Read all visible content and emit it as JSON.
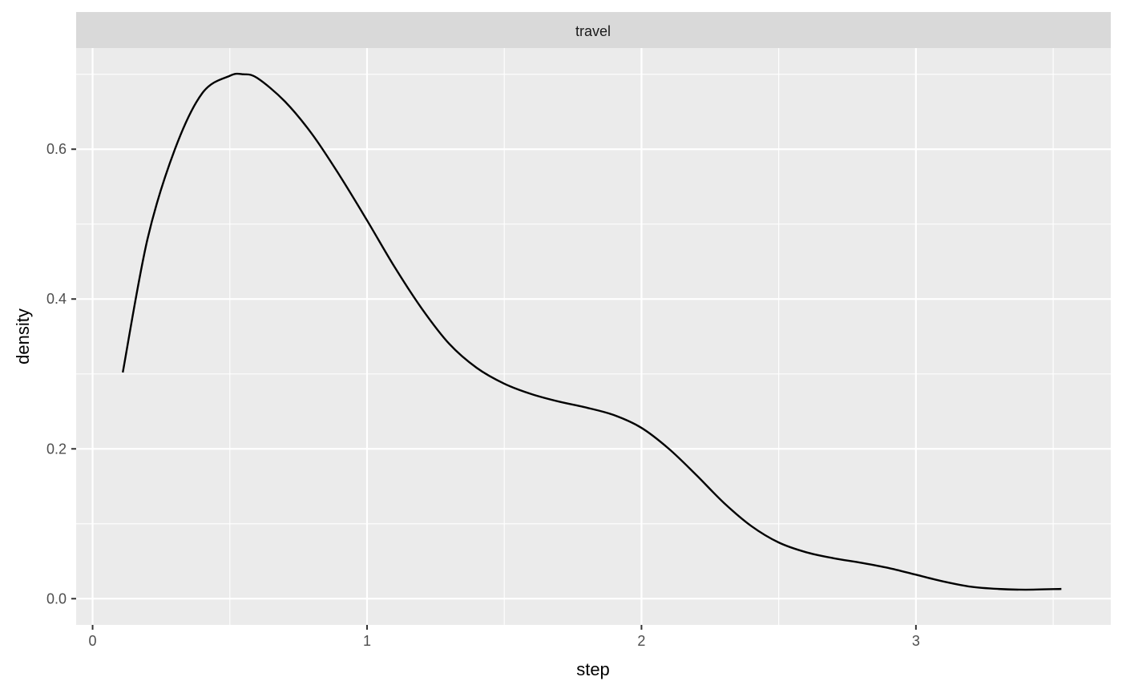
{
  "chart_data": {
    "type": "line",
    "facet_label": "travel",
    "xlabel": "step",
    "ylabel": "density",
    "xlim": [
      -0.06,
      3.71
    ],
    "ylim": [
      -0.035,
      0.735
    ],
    "x_ticks": [
      {
        "value": 0,
        "label": "0"
      },
      {
        "value": 1,
        "label": "1"
      },
      {
        "value": 2,
        "label": "2"
      },
      {
        "value": 3,
        "label": "3"
      }
    ],
    "x_minor_ticks": [
      0.5,
      1.5,
      2.5,
      3.5
    ],
    "y_ticks": [
      {
        "value": 0.0,
        "label": "0.0"
      },
      {
        "value": 0.2,
        "label": "0.2"
      },
      {
        "value": 0.4,
        "label": "0.4"
      },
      {
        "value": 0.6,
        "label": "0.6"
      }
    ],
    "y_minor_ticks": [
      0.1,
      0.3,
      0.5,
      0.7
    ],
    "grid": true,
    "series": [
      {
        "x": [
          0.11,
          0.2,
          0.3,
          0.4,
          0.5,
          0.55,
          0.6,
          0.7,
          0.8,
          0.9,
          1.0,
          1.1,
          1.2,
          1.3,
          1.4,
          1.5,
          1.6,
          1.7,
          1.8,
          1.9,
          2.0,
          2.1,
          2.2,
          2.3,
          2.4,
          2.5,
          2.6,
          2.7,
          2.8,
          2.9,
          3.0,
          3.1,
          3.2,
          3.3,
          3.4,
          3.53
        ],
        "y": [
          0.302,
          0.48,
          0.6,
          0.675,
          0.698,
          0.7,
          0.695,
          0.664,
          0.62,
          0.565,
          0.505,
          0.443,
          0.387,
          0.34,
          0.308,
          0.287,
          0.273,
          0.263,
          0.255,
          0.245,
          0.228,
          0.2,
          0.165,
          0.128,
          0.097,
          0.075,
          0.062,
          0.054,
          0.048,
          0.041,
          0.032,
          0.023,
          0.016,
          0.013,
          0.012,
          0.013
        ]
      }
    ],
    "colors": {
      "panel_background": "#ebebeb",
      "grid": "#ffffff",
      "strip_background": "#d9d9d9",
      "line": "#000000",
      "axis_ticks": "#333333"
    }
  }
}
